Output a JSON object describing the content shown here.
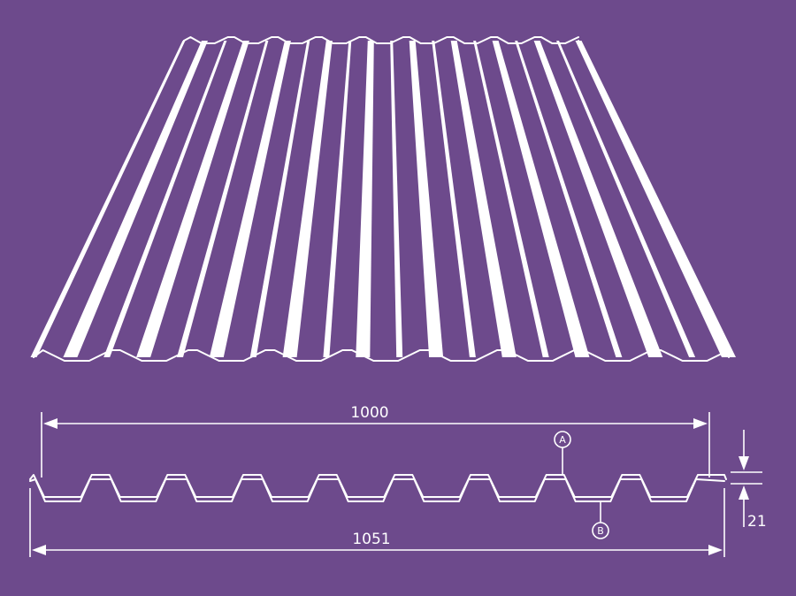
{
  "figure": {
    "background": "#6d4a8c",
    "line_color": "#ffffff",
    "rib_count": 9
  },
  "dimensions": {
    "effective_width": "1000",
    "total_width": "1051",
    "rib_height": "21"
  },
  "markers": {
    "a": "A",
    "b": "B"
  }
}
